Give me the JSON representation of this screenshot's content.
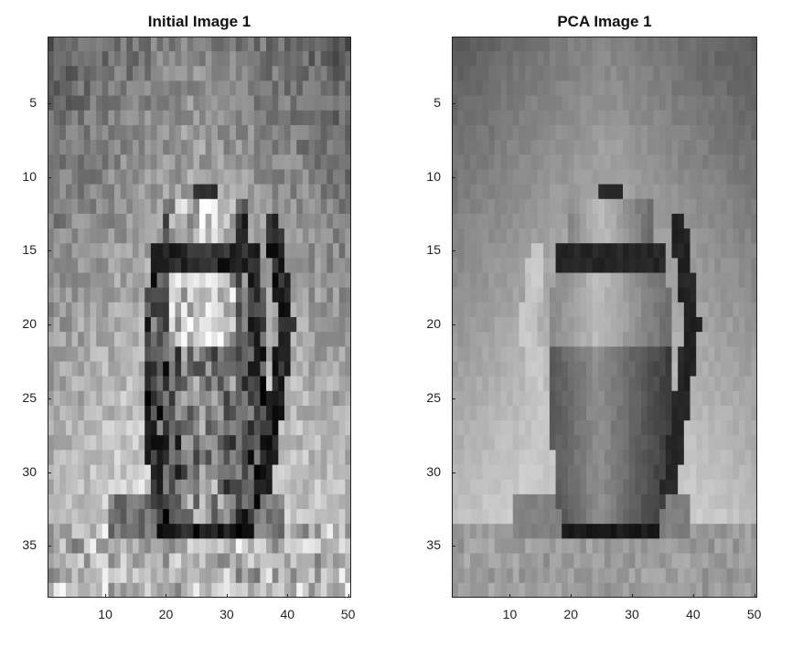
{
  "panels": [
    {
      "title": "Initial Image 1",
      "image": "grayscale-pixelated-teapot-original",
      "x_ticks": [
        10,
        20,
        30,
        40,
        50
      ],
      "y_ticks": [
        5,
        10,
        15,
        20,
        25,
        30,
        35
      ],
      "x_range": [
        0.5,
        50.5
      ],
      "y_range": [
        0.5,
        38.5
      ]
    },
    {
      "title": "PCA Image 1",
      "image": "grayscale-pixelated-teapot-pca-reconstruction",
      "x_ticks": [
        10,
        20,
        30,
        40,
        50
      ],
      "y_ticks": [
        5,
        10,
        15,
        20,
        25,
        30,
        35
      ],
      "x_range": [
        0.5,
        50.5
      ],
      "y_range": [
        0.5,
        38.5
      ]
    }
  ]
}
